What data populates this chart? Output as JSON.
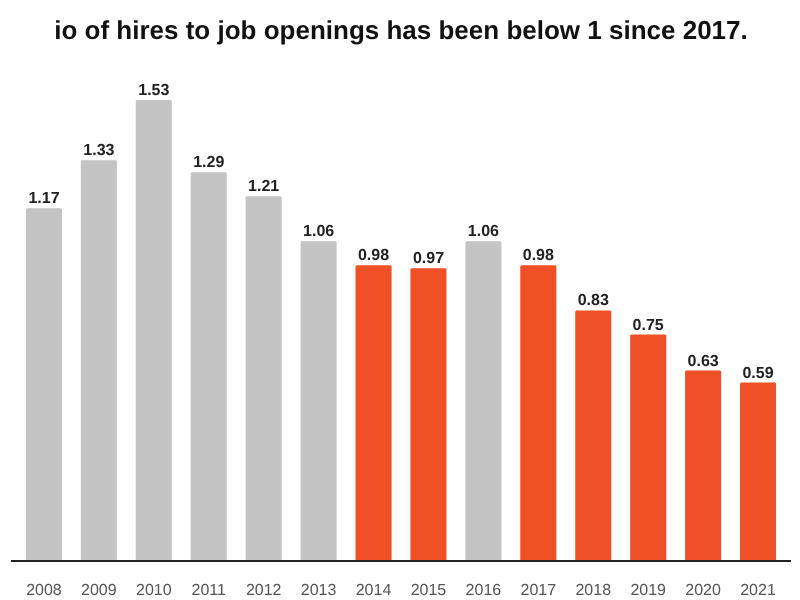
{
  "chart_data": {
    "type": "bar",
    "title": "io of hires to job openings has been below 1 since 2017.",
    "categories": [
      "2008",
      "2009",
      "2010",
      "2011",
      "2012",
      "2013",
      "2014",
      "2015",
      "2016",
      "2017",
      "2018",
      "2019",
      "2020",
      "2021"
    ],
    "values": [
      1.17,
      1.33,
      1.53,
      1.29,
      1.21,
      1.06,
      0.98,
      0.97,
      1.06,
      0.98,
      0.83,
      0.75,
      0.63,
      0.59
    ],
    "colors": [
      "#c4c4c4",
      "#c4c4c4",
      "#c4c4c4",
      "#c4c4c4",
      "#c4c4c4",
      "#c4c4c4",
      "#ef5026",
      "#ef5026",
      "#c4c4c4",
      "#ef5026",
      "#ef5026",
      "#ef5026",
      "#ef5026",
      "#ef5026"
    ],
    "data_labels": true,
    "grid": false
  }
}
